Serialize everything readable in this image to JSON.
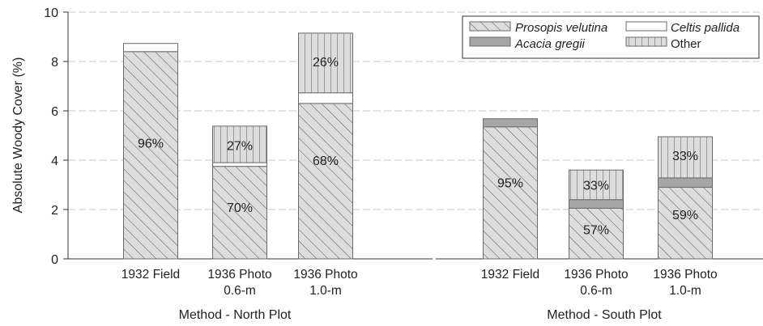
{
  "chart_data": {
    "type": "bar",
    "stacked": true,
    "ylabel": "Absolute Woody Cover (%)",
    "ylim": [
      0,
      10
    ],
    "yticks": [
      "0",
      "2",
      "4",
      "6",
      "8",
      "10"
    ],
    "grid": "horizontal dashed",
    "legend_position": "top-right",
    "groups": [
      {
        "label": "Method - North Plot",
        "categories": [
          {
            "lines": [
              "1932 Field"
            ],
            "segments": {
              "Prosopis velutina": 8.4,
              "Acacia gregii": 0.0,
              "Celtis pallida": 0.33,
              "Other": 0.0
            },
            "annotations": [
              {
                "text": "96%",
                "y": 4.7
              }
            ]
          },
          {
            "lines": [
              "1936 Photo",
              "0.6-m"
            ],
            "segments": {
              "Prosopis velutina": 3.75,
              "Acacia gregii": 0.0,
              "Celtis pallida": 0.15,
              "Other": 1.48
            },
            "annotations": [
              {
                "text": "70%",
                "y": 2.1
              },
              {
                "text": "27%",
                "y": 4.6
              }
            ]
          },
          {
            "lines": [
              "1936 Photo",
              "1.0-m"
            ],
            "segments": {
              "Prosopis velutina": 6.3,
              "Acacia gregii": 0.0,
              "Celtis pallida": 0.43,
              "Other": 2.42
            },
            "annotations": [
              {
                "text": "68%",
                "y": 4.0
              },
              {
                "text": "26%",
                "y": 8.0
              }
            ]
          }
        ]
      },
      {
        "label": "Method - South Plot",
        "categories": [
          {
            "lines": [
              "1932 Field"
            ],
            "segments": {
              "Prosopis velutina": 5.35,
              "Acacia gregii": 0.33,
              "Celtis pallida": 0.0,
              "Other": 0.0
            },
            "annotations": [
              {
                "text": "95%",
                "y": 3.1
              }
            ]
          },
          {
            "lines": [
              "1936 Photo",
              "0.6-m"
            ],
            "segments": {
              "Prosopis velutina": 2.05,
              "Acacia gregii": 0.35,
              "Celtis pallida": 0.0,
              "Other": 1.2
            },
            "annotations": [
              {
                "text": "57%",
                "y": 1.2
              },
              {
                "text": "33%",
                "y": 3.0
              }
            ]
          },
          {
            "lines": [
              "1936 Photo",
              "1.0-m"
            ],
            "segments": {
              "Prosopis velutina": 2.9,
              "Acacia gregii": 0.38,
              "Celtis pallida": 0.0,
              "Other": 1.67
            },
            "annotations": [
              {
                "text": "59%",
                "y": 1.8
              },
              {
                "text": "33%",
                "y": 4.2
              }
            ]
          }
        ]
      }
    ],
    "series": [
      {
        "name": "Prosopis velutina",
        "italic": true,
        "fill": "#dddddd",
        "pattern": "diagonal-hatch"
      },
      {
        "name": "Acacia gregii",
        "italic": true,
        "fill": "#a6a6a6",
        "pattern": "none"
      },
      {
        "name": "Celtis pallida",
        "italic": true,
        "fill": "#ffffff",
        "pattern": "none"
      },
      {
        "name": "Other",
        "italic": false,
        "fill": "#dddddd",
        "pattern": "vertical-hatch"
      }
    ]
  }
}
